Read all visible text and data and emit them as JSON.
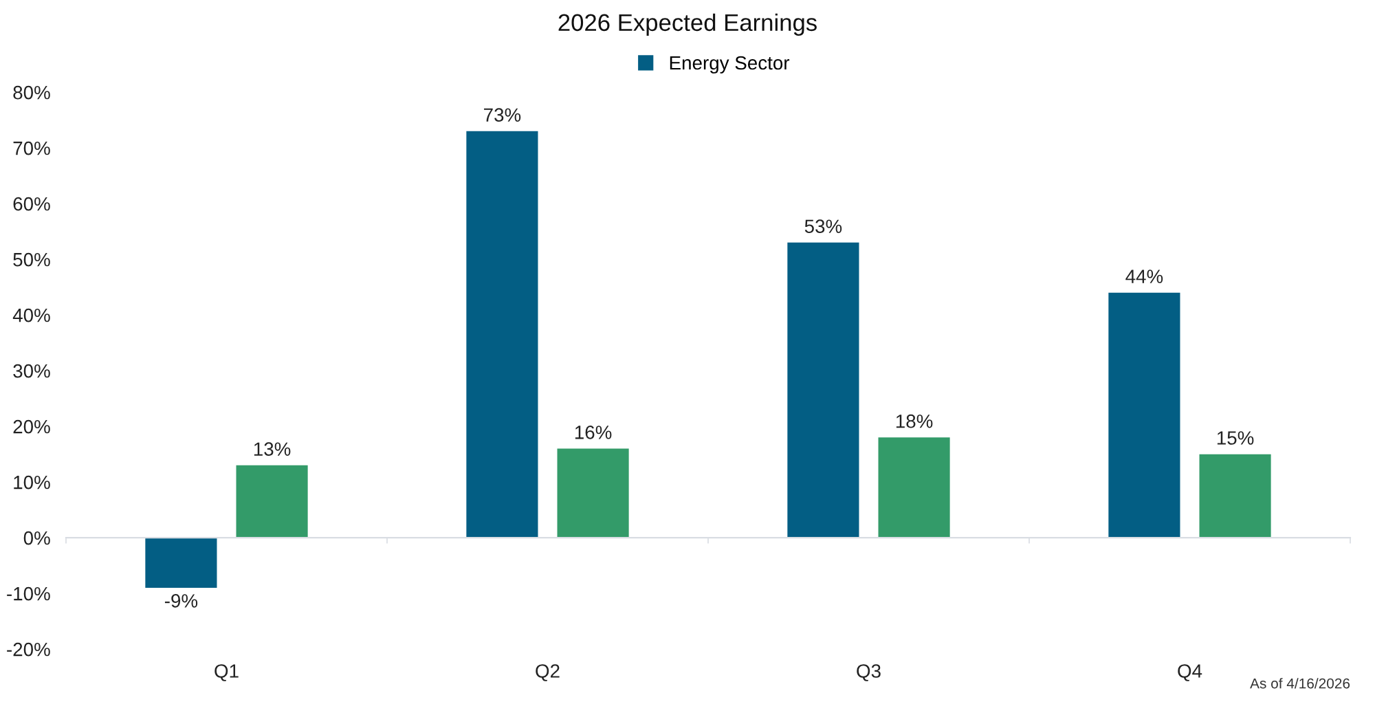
{
  "chart_data": {
    "type": "bar",
    "title": "2026 Expected Earnings",
    "categories": [
      "Q1",
      "Q2",
      "Q3",
      "Q4"
    ],
    "series": [
      {
        "name": "Energy Sector",
        "color": "#035e84",
        "values": [
          -9,
          73,
          53,
          44
        ],
        "value_labels": [
          "-9%",
          "73%",
          "53%",
          "44%"
        ]
      },
      {
        "color": "#339b69",
        "values": [
          13,
          16,
          18,
          15
        ],
        "value_labels": [
          "13%",
          "16%",
          "18%",
          "15%"
        ]
      }
    ],
    "ylim": [
      -20,
      80
    ],
    "yticks": [
      {
        "value": -20,
        "label": "-20%"
      },
      {
        "value": -10,
        "label": "-10%"
      },
      {
        "value": 0,
        "label": "0%"
      },
      {
        "value": 10,
        "label": "10%"
      },
      {
        "value": 20,
        "label": "20%"
      },
      {
        "value": 30,
        "label": "30%"
      },
      {
        "value": 40,
        "label": "40%"
      },
      {
        "value": 50,
        "label": "50%"
      },
      {
        "value": 60,
        "label": "60%"
      },
      {
        "value": 70,
        "label": "70%"
      },
      {
        "value": 80,
        "label": "80%"
      }
    ],
    "legend": "top",
    "annotations": [
      "As of 4/16/2026"
    ]
  }
}
